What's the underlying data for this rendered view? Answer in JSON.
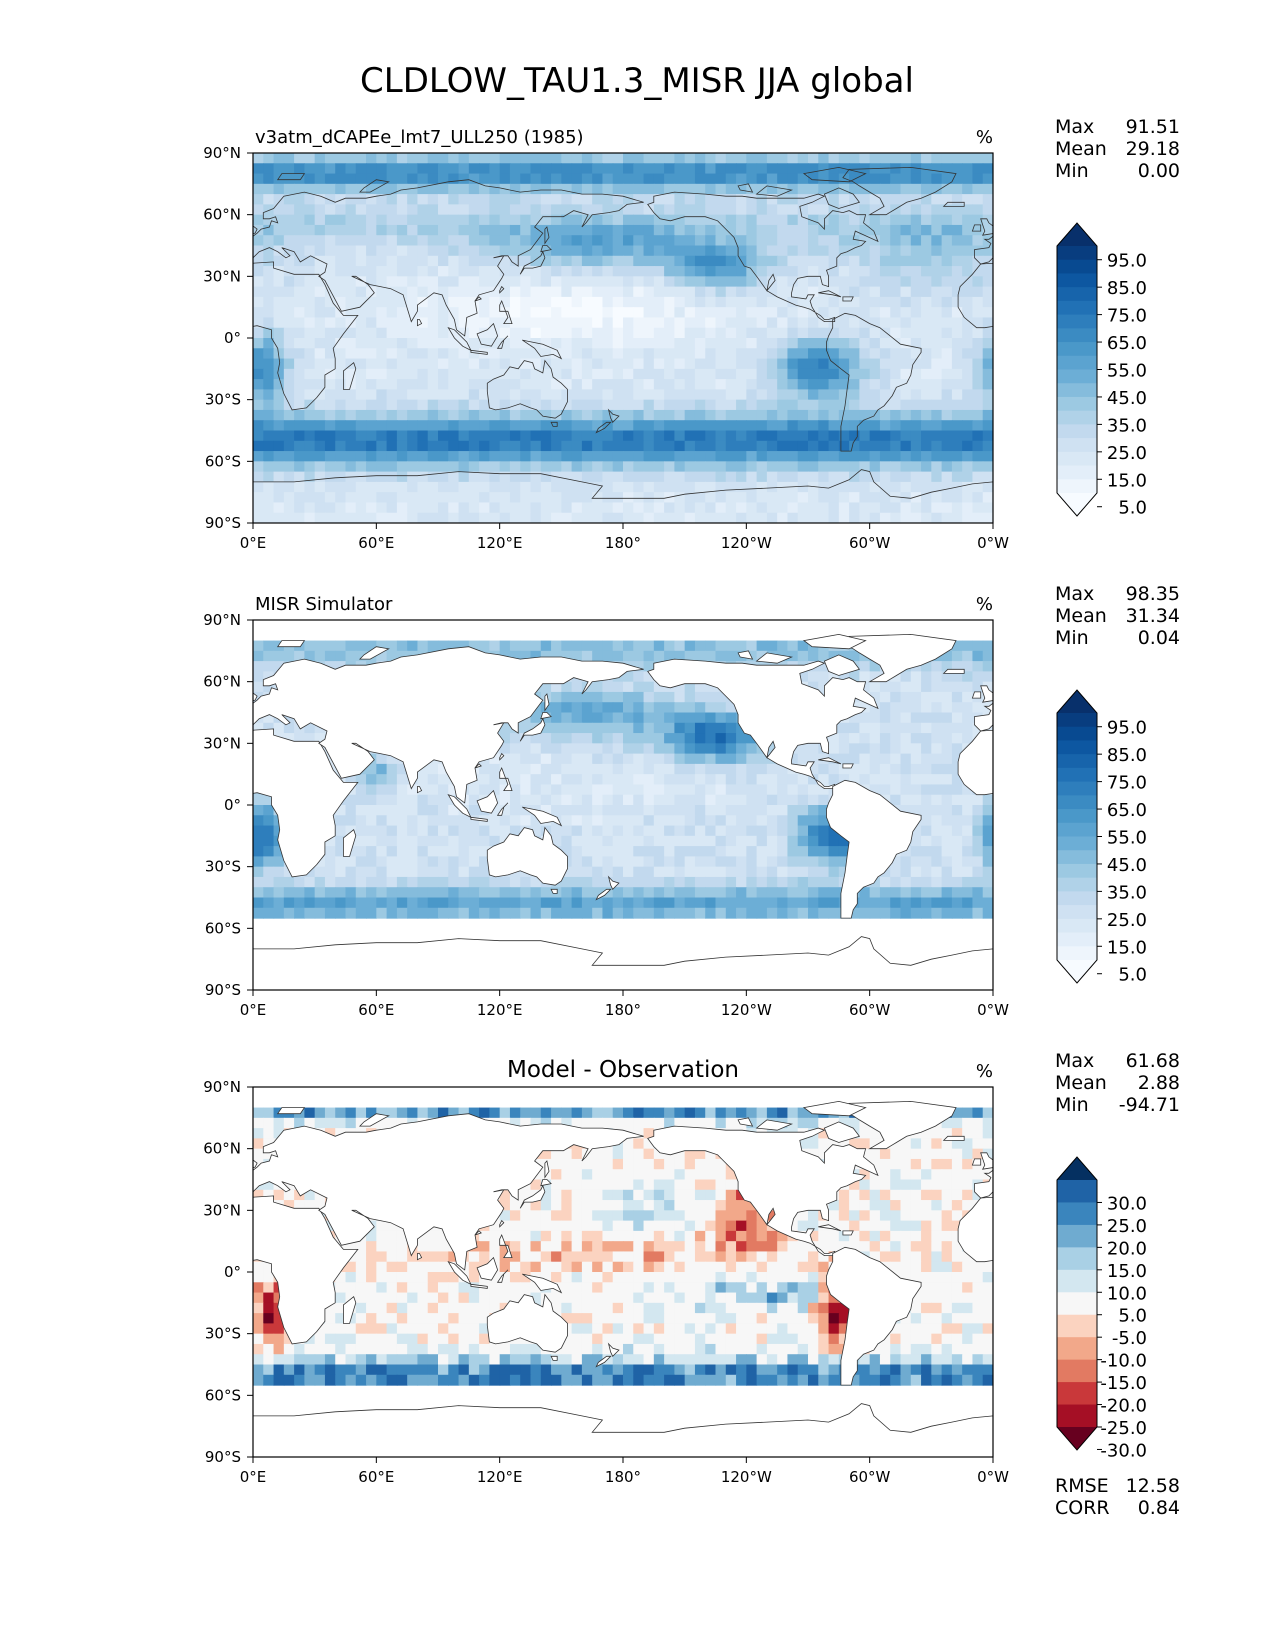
{
  "figure": {
    "title": "CLDLOW_TAU1.3_MISR JJA global"
  },
  "chart_data": [
    {
      "type": "heatmap",
      "title": "v3atm_dCAPEe_lmt7_ULL250 (1985)",
      "center_title": "",
      "units": "%",
      "xlabel": "",
      "ylabel": "",
      "xticks": [
        "0°E",
        "60°E",
        "120°E",
        "180°",
        "120°W",
        "60°W",
        "0°W"
      ],
      "yticks": [
        "90°N",
        "60°N",
        "30°N",
        "0°",
        "30°S",
        "60°S",
        "90°S"
      ],
      "xlim": [
        0,
        360
      ],
      "ylim": [
        -90,
        90
      ],
      "stats": [
        {
          "label": "Max",
          "value": "91.51"
        },
        {
          "label": "Mean",
          "value": "29.18"
        },
        {
          "label": "Min",
          "value": "0.00"
        }
      ],
      "colorbar": {
        "levels": [
          0,
          5,
          10,
          15,
          20,
          25,
          30,
          35,
          40,
          45,
          50,
          55,
          60,
          65,
          70,
          75,
          80,
          85,
          90,
          95,
          100
        ],
        "tick_labels": [
          "95.0",
          "85.0",
          "75.0",
          "65.0",
          "55.0",
          "45.0",
          "35.0",
          "25.0",
          "15.0",
          "5.0"
        ],
        "colors": [
          "#f7fbff",
          "#eef5fc",
          "#e3eef9",
          "#d9e8f5",
          "#cfe1f2",
          "#c2d9ee",
          "#b0d2e8",
          "#9cc9e2",
          "#85bcdc",
          "#6caed6",
          "#5ba3d0",
          "#4a98c9",
          "#3b8bc2",
          "#2e7ebc",
          "#2171b5",
          "#1764ab",
          "#0d57a1",
          "#084a91",
          "#083d7f",
          "#08306b"
        ],
        "extend": "both"
      },
      "footer_stats": []
    },
    {
      "type": "heatmap",
      "title": "MISR Simulator",
      "center_title": "",
      "units": "%",
      "xlabel": "",
      "ylabel": "",
      "xticks": [
        "0°E",
        "60°E",
        "120°E",
        "180°",
        "120°W",
        "60°W",
        "0°W"
      ],
      "yticks": [
        "90°N",
        "60°N",
        "30°N",
        "0°",
        "30°S",
        "60°S",
        "90°S"
      ],
      "xlim": [
        0,
        360
      ],
      "ylim": [
        -90,
        90
      ],
      "stats": [
        {
          "label": "Max",
          "value": "98.35"
        },
        {
          "label": "Mean",
          "value": "31.34"
        },
        {
          "label": "Min",
          "value": "0.04"
        }
      ],
      "colorbar": {
        "levels": [
          0,
          5,
          10,
          15,
          20,
          25,
          30,
          35,
          40,
          45,
          50,
          55,
          60,
          65,
          70,
          75,
          80,
          85,
          90,
          95,
          100
        ],
        "tick_labels": [
          "95.0",
          "85.0",
          "75.0",
          "65.0",
          "55.0",
          "45.0",
          "35.0",
          "25.0",
          "15.0",
          "5.0"
        ],
        "colors": [
          "#f7fbff",
          "#eef5fc",
          "#e3eef9",
          "#d9e8f5",
          "#cfe1f2",
          "#c2d9ee",
          "#b0d2e8",
          "#9cc9e2",
          "#85bcdc",
          "#6caed6",
          "#5ba3d0",
          "#4a98c9",
          "#3b8bc2",
          "#2e7ebc",
          "#2171b5",
          "#1764ab",
          "#0d57a1",
          "#084a91",
          "#083d7f",
          "#08306b"
        ],
        "extend": "both"
      },
      "footer_stats": []
    },
    {
      "type": "heatmap",
      "title": "",
      "center_title": "Model - Observation",
      "units": "%",
      "xlabel": "",
      "ylabel": "",
      "xticks": [
        "0°E",
        "60°E",
        "120°E",
        "180°",
        "120°W",
        "60°W",
        "0°W"
      ],
      "yticks": [
        "90°N",
        "60°N",
        "30°N",
        "0°",
        "30°S",
        "60°S",
        "90°S"
      ],
      "xlim": [
        0,
        360
      ],
      "ylim": [
        -90,
        90
      ],
      "stats": [
        {
          "label": "Max",
          "value": "61.68"
        },
        {
          "label": "Mean",
          "value": "2.88"
        },
        {
          "label": "Min",
          "value": "-94.71"
        }
      ],
      "colorbar": {
        "levels": [
          -35,
          -30,
          -25,
          -20,
          -15,
          -10,
          -5,
          5,
          10,
          15,
          20,
          25,
          30,
          35
        ],
        "tick_labels": [
          "30.0",
          "25.0",
          "20.0",
          "15.0",
          "10.0",
          "5.0",
          "-5.0",
          "-10.0",
          "-15.0",
          "-20.0",
          "-25.0",
          "-30.0"
        ],
        "colors": [
          "#67001f",
          "#a50f25",
          "#c9383a",
          "#e27a62",
          "#f2a88a",
          "#fbd3c0",
          "#f7f7f7",
          "#d3e7f0",
          "#a9d0e5",
          "#6fabd0",
          "#3a85bd",
          "#1f63a6",
          "#053061"
        ],
        "extend": "both"
      },
      "footer_stats": [
        {
          "label": "RMSE",
          "value": "12.58"
        },
        {
          "label": "CORR",
          "value": "0.84"
        }
      ]
    }
  ]
}
